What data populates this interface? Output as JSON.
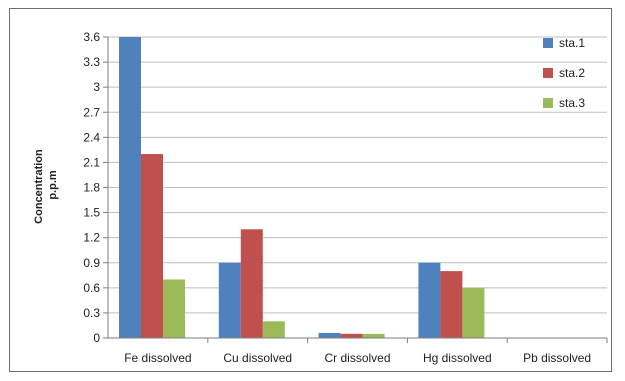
{
  "chart_data": {
    "type": "bar",
    "title": "",
    "ylabel": "Concentration p.p.m",
    "ylabel_lines": [
      "Concentration",
      "p.p.m"
    ],
    "xlabel": "",
    "categories": [
      "Fe dissolved",
      "Cu dissolved",
      "Cr dissolved",
      "Hg dissolved",
      "Pb dissolved"
    ],
    "series": [
      {
        "name": "sta.1",
        "color": "#4f81bd",
        "values": [
          3.6,
          0.9,
          0.06,
          0.9,
          0
        ]
      },
      {
        "name": "sta.2",
        "color": "#c0504d",
        "values": [
          2.2,
          1.3,
          0.05,
          0.8,
          0
        ]
      },
      {
        "name": "sta.3",
        "color": "#9bbb59",
        "values": [
          0.7,
          0.2,
          0.05,
          0.6,
          0
        ]
      }
    ],
    "ylim": [
      0,
      3.6
    ],
    "yticks": [
      "0",
      "0.3",
      "0.6",
      "0.9",
      "1.2",
      "1.5",
      "1.8",
      "2.1",
      "2.4",
      "2.7",
      "3",
      "3.3",
      "3.6"
    ],
    "grid": true,
    "legend_position": "top-right"
  }
}
